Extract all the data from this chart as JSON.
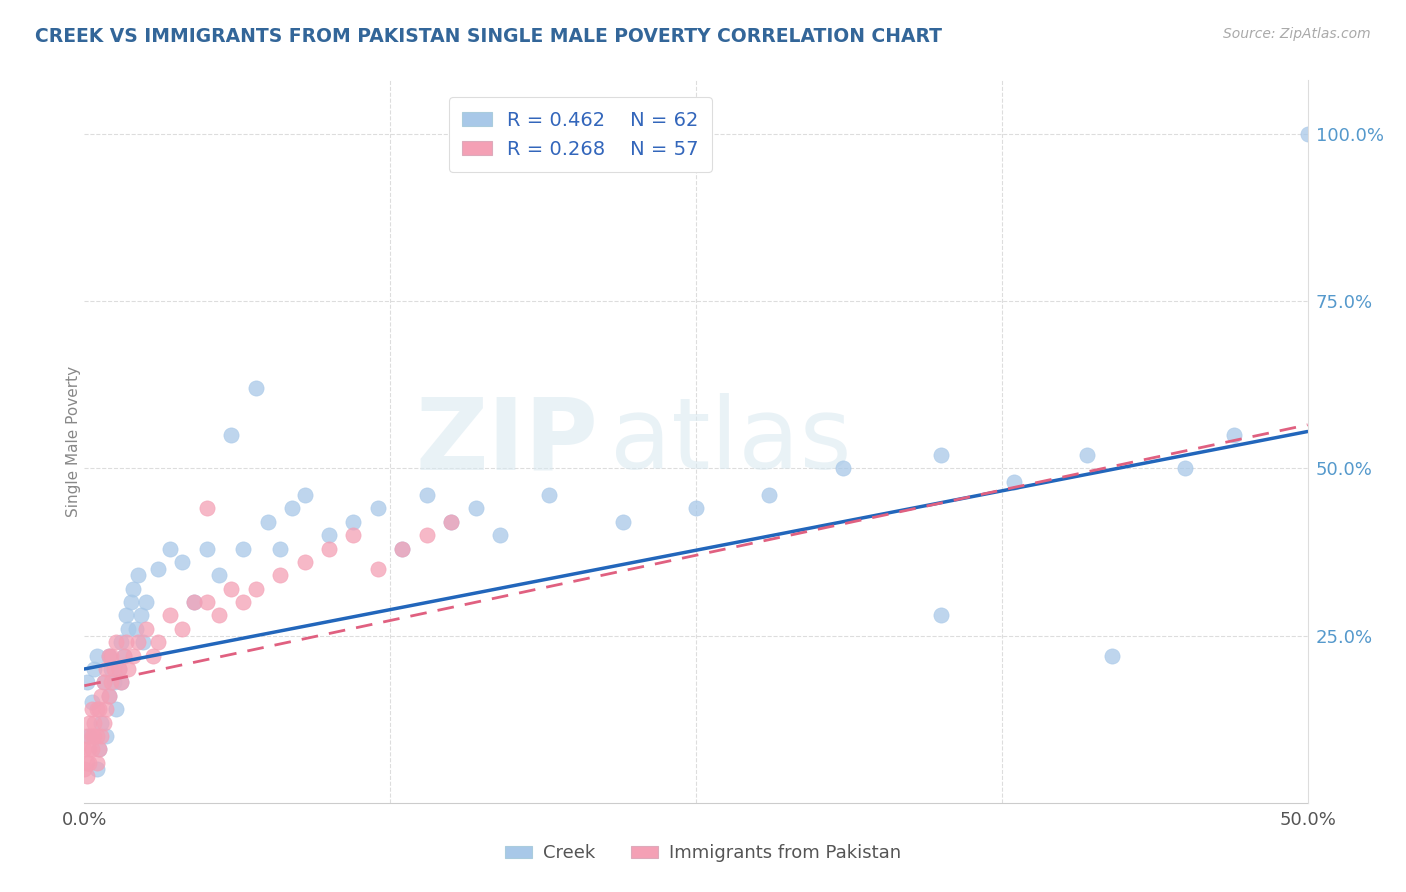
{
  "title": "CREEK VS IMMIGRANTS FROM PAKISTAN SINGLE MALE POVERTY CORRELATION CHART",
  "source_text": "Source: ZipAtlas.com",
  "ylabel": "Single Male Poverty",
  "creek_color": "#a8c8e8",
  "pakistan_color": "#f4a0b5",
  "creek_R": 0.462,
  "creek_N": 62,
  "pakistan_R": 0.268,
  "pakistan_N": 57,
  "xlim": [
    0.0,
    0.5
  ],
  "ylim": [
    0.0,
    1.08
  ],
  "watermark_zip": "ZIP",
  "watermark_atlas": "atlas",
  "background_color": "#ffffff",
  "grid_color": "#dddddd",
  "title_color": "#336699",
  "creek_line_color": "#2266bb",
  "pakistan_line_color": "#e06080",
  "creek_x": [
    0.001,
    0.002,
    0.003,
    0.004,
    0.005,
    0.005,
    0.006,
    0.007,
    0.008,
    0.009,
    0.01,
    0.01,
    0.011,
    0.012,
    0.013,
    0.014,
    0.015,
    0.015,
    0.016,
    0.017,
    0.018,
    0.019,
    0.02,
    0.021,
    0.022,
    0.023,
    0.024,
    0.025,
    0.03,
    0.035,
    0.04,
    0.045,
    0.05,
    0.055,
    0.06,
    0.065,
    0.07,
    0.075,
    0.08,
    0.085,
    0.09,
    0.1,
    0.11,
    0.12,
    0.13,
    0.14,
    0.15,
    0.16,
    0.17,
    0.19,
    0.22,
    0.25,
    0.28,
    0.31,
    0.35,
    0.38,
    0.41,
    0.45,
    0.47,
    0.5,
    0.35,
    0.42
  ],
  "creek_y": [
    0.18,
    0.1,
    0.15,
    0.2,
    0.22,
    0.05,
    0.08,
    0.12,
    0.18,
    0.1,
    0.16,
    0.22,
    0.2,
    0.18,
    0.14,
    0.2,
    0.24,
    0.18,
    0.22,
    0.28,
    0.26,
    0.3,
    0.32,
    0.26,
    0.34,
    0.28,
    0.24,
    0.3,
    0.35,
    0.38,
    0.36,
    0.3,
    0.38,
    0.34,
    0.55,
    0.38,
    0.62,
    0.42,
    0.38,
    0.44,
    0.46,
    0.4,
    0.42,
    0.44,
    0.38,
    0.46,
    0.42,
    0.44,
    0.4,
    0.46,
    0.42,
    0.44,
    0.46,
    0.5,
    0.52,
    0.48,
    0.52,
    0.5,
    0.55,
    1.0,
    0.28,
    0.22
  ],
  "pakistan_x": [
    0.0,
    0.0,
    0.001,
    0.001,
    0.001,
    0.002,
    0.002,
    0.002,
    0.003,
    0.003,
    0.003,
    0.004,
    0.004,
    0.005,
    0.005,
    0.005,
    0.006,
    0.006,
    0.007,
    0.007,
    0.008,
    0.008,
    0.009,
    0.009,
    0.01,
    0.01,
    0.011,
    0.011,
    0.012,
    0.013,
    0.014,
    0.015,
    0.016,
    0.017,
    0.018,
    0.02,
    0.022,
    0.025,
    0.028,
    0.03,
    0.035,
    0.04,
    0.045,
    0.05,
    0.055,
    0.06,
    0.065,
    0.07,
    0.08,
    0.09,
    0.1,
    0.11,
    0.12,
    0.13,
    0.14,
    0.15,
    0.05
  ],
  "pakistan_y": [
    0.05,
    0.08,
    0.04,
    0.1,
    0.06,
    0.08,
    0.12,
    0.06,
    0.1,
    0.08,
    0.14,
    0.1,
    0.12,
    0.06,
    0.1,
    0.14,
    0.08,
    0.14,
    0.1,
    0.16,
    0.12,
    0.18,
    0.14,
    0.2,
    0.16,
    0.22,
    0.18,
    0.22,
    0.2,
    0.24,
    0.2,
    0.18,
    0.22,
    0.24,
    0.2,
    0.22,
    0.24,
    0.26,
    0.22,
    0.24,
    0.28,
    0.26,
    0.3,
    0.3,
    0.28,
    0.32,
    0.3,
    0.32,
    0.34,
    0.36,
    0.38,
    0.4,
    0.35,
    0.38,
    0.4,
    0.42,
    0.44
  ],
  "creek_line_x0": 0.0,
  "creek_line_y0": 0.2,
  "creek_line_x1": 0.5,
  "creek_line_y1": 0.555,
  "pak_line_x0": 0.0,
  "pak_line_y0": 0.175,
  "pak_line_x1": 0.5,
  "pak_line_y1": 0.565
}
